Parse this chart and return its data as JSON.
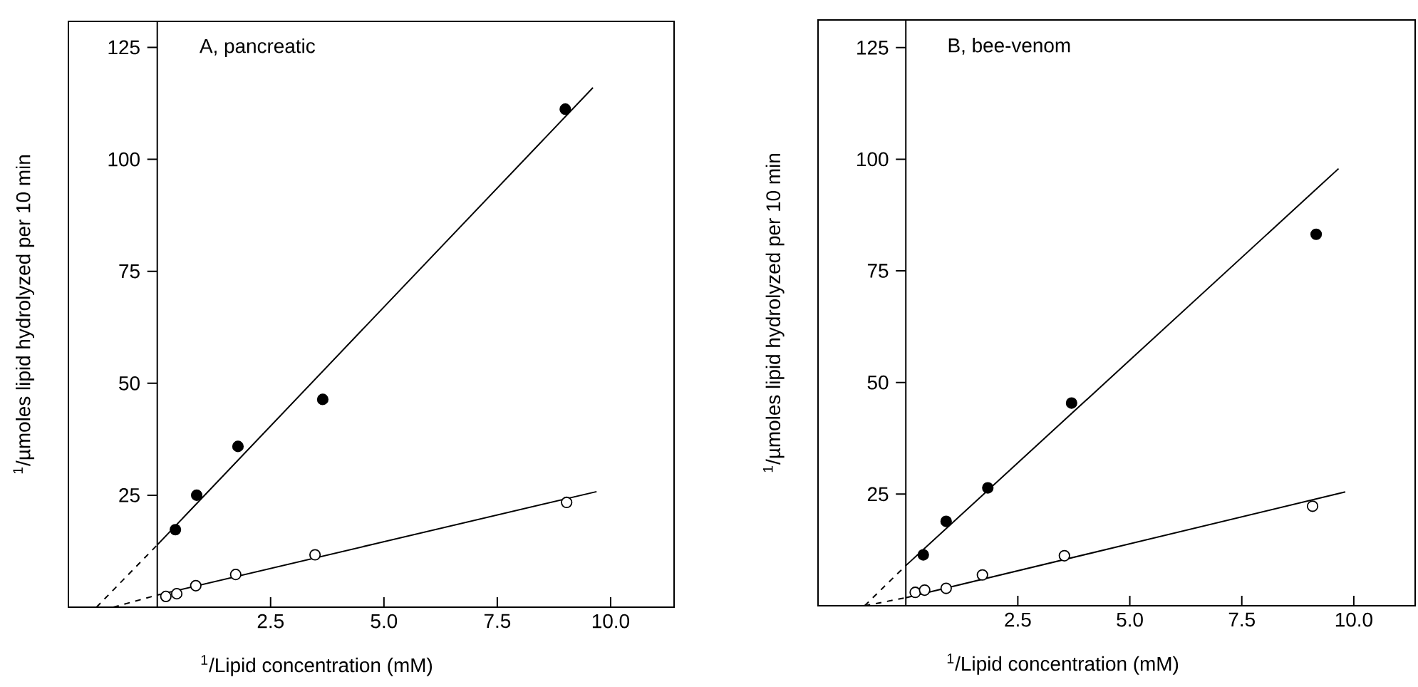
{
  "chart_data": [
    {
      "type": "scatter",
      "title": "A, pancreatic",
      "xlabel": "$^{1}$/Lipid concentration (mM)",
      "ylabel": "$^{1}$/µmoles lipid hydrolyzed per 10 min",
      "xlim": [
        -1.96,
        11.4
      ],
      "ylim": [
        0,
        130.8
      ],
      "xticks": [
        {
          "value": 2.5,
          "label": "2.5"
        },
        {
          "value": 5,
          "label": "5.0"
        },
        {
          "value": 7.5,
          "label": "7.5"
        },
        {
          "value": 10,
          "label": "10.0"
        }
      ],
      "yticks": [
        25,
        50,
        75,
        100,
        125
      ],
      "series": [
        {
          "type": "scatter",
          "marker": "circle",
          "color": "#000000",
          "x": [
            0.4,
            0.87,
            1.78,
            3.65,
            9.0
          ],
          "values": [
            17.3,
            25.0,
            35.9,
            46.4,
            111.2
          ]
        },
        {
          "type": "scatter",
          "marker": "circle",
          "color": "#ffffff",
          "x": [
            0.19,
            0.43,
            0.85,
            1.73,
            3.48,
            9.03
          ],
          "values": [
            2.4,
            3.0,
            4.8,
            7.3,
            11.7,
            23.4
          ]
        },
        {
          "type": "line",
          "line_style": "solid",
          "color": "#000000",
          "x": [
            0,
            9.61
          ],
          "values": [
            13.9,
            116.0
          ]
        },
        {
          "type": "line",
          "line_style": "solid",
          "color": "#000000",
          "x": [
            0,
            9.69
          ],
          "values": [
            2.7,
            25.8
          ]
        },
        {
          "type": "line",
          "line_style": "dashed",
          "color": "#000000",
          "x": [
            -1.34,
            0
          ],
          "values": [
            0,
            13.9
          ]
        },
        {
          "type": "line",
          "line_style": "dashed",
          "color": "#000000",
          "x": [
            -0.97,
            0
          ],
          "values": [
            0,
            2.7
          ]
        }
      ]
    },
    {
      "type": "scatter",
      "title": "B, bee-venom",
      "xlabel": "$^{1}$/Lipid concentration (mM)",
      "ylabel": "$^{1}$/µmoles lipid hydrolyzed per 10 min",
      "xlim": [
        -1.96,
        11.37
      ],
      "ylim": [
        0,
        131.2
      ],
      "xticks": [
        {
          "value": 2.5,
          "label": "2.5"
        },
        {
          "value": 5,
          "label": "5.0"
        },
        {
          "value": 7.5,
          "label": "7.5"
        },
        {
          "value": 10,
          "label": "10.0"
        }
      ],
      "yticks": [
        25,
        50,
        75,
        100,
        125
      ],
      "series": [
        {
          "type": "scatter",
          "marker": "circle",
          "color": "#000000",
          "x": [
            0.39,
            0.9,
            1.83,
            3.7,
            9.16
          ],
          "values": [
            11.4,
            18.9,
            26.4,
            45.4,
            83.2
          ]
        },
        {
          "type": "scatter",
          "marker": "circle",
          "color": "#ffffff",
          "x": [
            0.21,
            0.42,
            0.9,
            1.71,
            3.54,
            9.08
          ],
          "values": [
            3.0,
            3.5,
            3.9,
            6.9,
            11.2,
            22.3
          ]
        },
        {
          "type": "line",
          "line_style": "solid",
          "color": "#000000",
          "x": [
            0,
            9.66
          ],
          "values": [
            9.0,
            97.9
          ]
        },
        {
          "type": "line",
          "line_style": "solid",
          "color": "#000000",
          "x": [
            0,
            9.81
          ],
          "values": [
            1.8,
            25.5
          ]
        },
        {
          "type": "line",
          "line_style": "dashed",
          "color": "#000000",
          "x": [
            -0.92,
            0
          ],
          "values": [
            0,
            9.0
          ]
        },
        {
          "type": "line",
          "line_style": "dashed",
          "color": "#000000",
          "x": [
            -0.92,
            0
          ],
          "values": [
            0,
            1.8
          ]
        }
      ]
    }
  ]
}
